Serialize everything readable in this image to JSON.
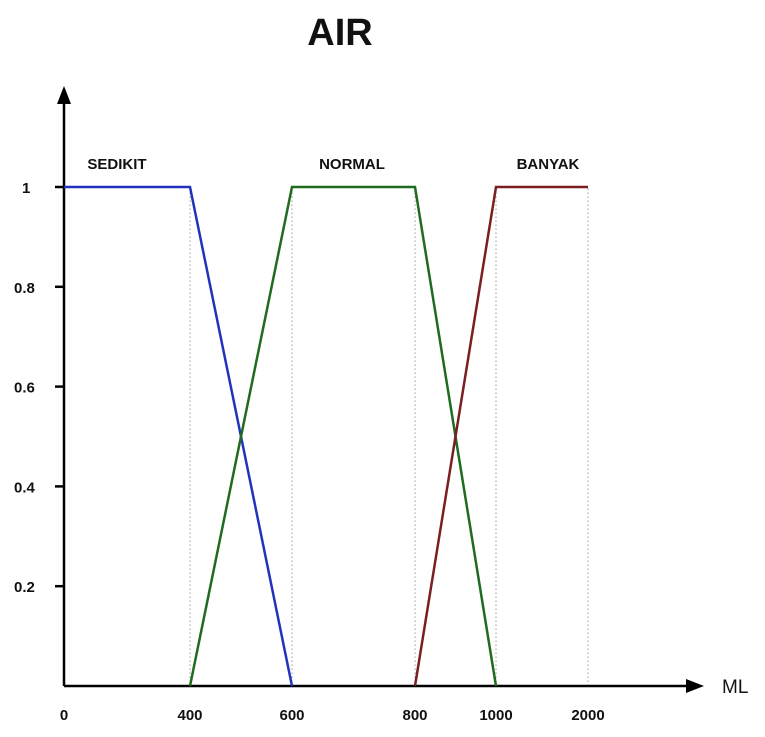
{
  "chart_data": {
    "type": "line",
    "title": "AIR",
    "xlabel": "ML",
    "ylabel": "",
    "x_ticks": [
      "0",
      "400",
      "600",
      "800",
      "1000",
      "2000"
    ],
    "y_ticks": [
      "0.2",
      "0.4",
      "0.6",
      "0.8",
      "1"
    ],
    "ylim": [
      0,
      1
    ],
    "grid": "dotted vertical guides at breakpoints",
    "series": [
      {
        "name": "SEDIKIT",
        "color": "#2233bb",
        "points": [
          {
            "x": "0",
            "y": 1
          },
          {
            "x": "400",
            "y": 1
          },
          {
            "x": "600",
            "y": 0
          }
        ]
      },
      {
        "name": "NORMAL",
        "color": "#1f6b1f",
        "points": [
          {
            "x": "400",
            "y": 0
          },
          {
            "x": "600",
            "y": 1
          },
          {
            "x": "800",
            "y": 1
          },
          {
            "x": "1000",
            "y": 0
          }
        ]
      },
      {
        "name": "BANYAK",
        "color": "#7a1f1f",
        "points": [
          {
            "x": "800",
            "y": 0
          },
          {
            "x": "1000",
            "y": 1
          },
          {
            "x": "2000",
            "y": 1
          }
        ]
      }
    ]
  }
}
